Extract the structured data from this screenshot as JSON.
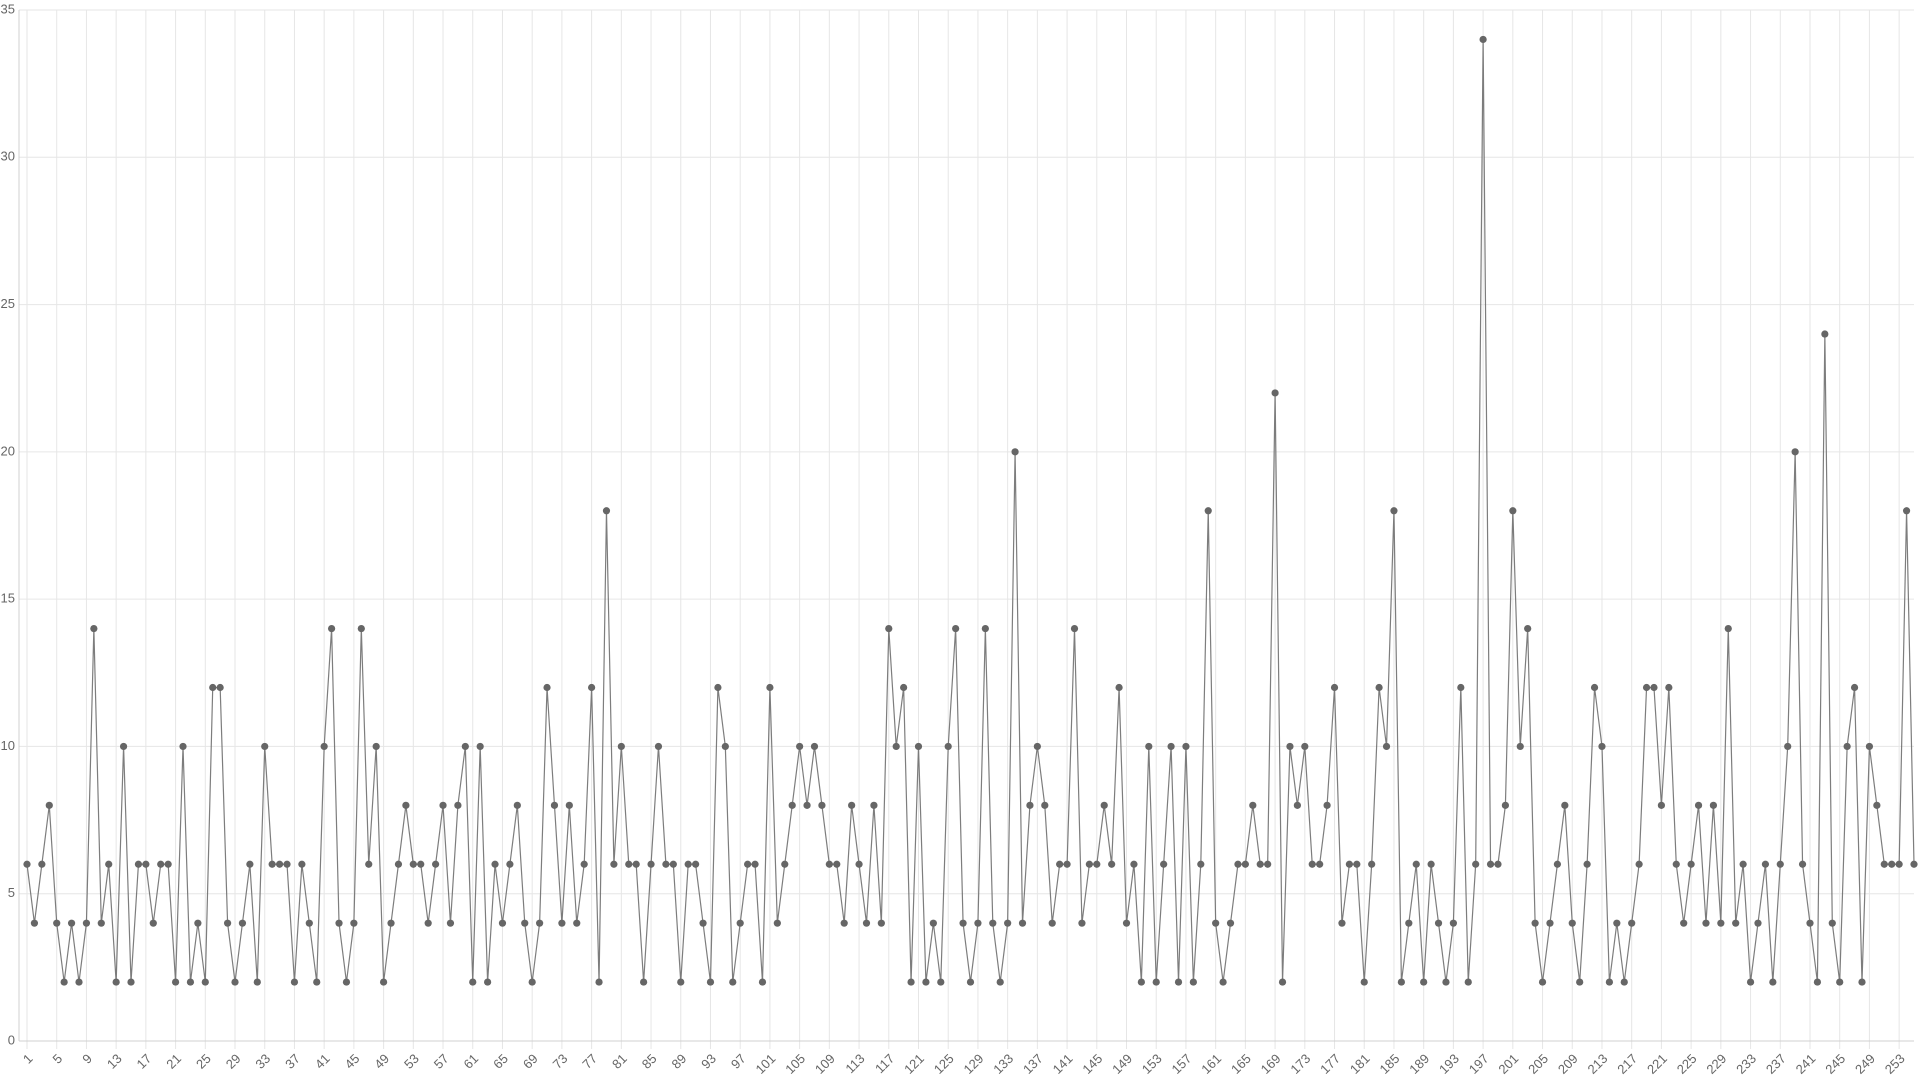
{
  "chart_data": {
    "type": "line",
    "x": [
      1,
      2,
      3,
      4,
      5,
      6,
      7,
      8,
      9,
      10,
      11,
      12,
      13,
      14,
      15,
      16,
      17,
      18,
      19,
      20,
      21,
      22,
      23,
      24,
      25,
      26,
      27,
      28,
      29,
      30,
      31,
      32,
      33,
      34,
      35,
      36,
      37,
      38,
      39,
      40,
      41,
      42,
      43,
      44,
      45,
      46,
      47,
      48,
      49,
      50,
      51,
      52,
      53,
      54,
      55,
      56,
      57,
      58,
      59,
      60,
      61,
      62,
      63,
      64,
      65,
      66,
      67,
      68,
      69,
      70,
      71,
      72,
      73,
      74,
      75,
      76,
      77,
      78,
      79,
      80,
      81,
      82,
      83,
      84,
      85,
      86,
      87,
      88,
      89,
      90,
      91,
      92,
      93,
      94,
      95,
      96,
      97,
      98,
      99,
      100,
      101,
      102,
      103,
      104,
      105,
      106,
      107,
      108,
      109,
      110,
      111,
      112,
      113,
      114,
      115,
      116,
      117,
      118,
      119,
      120,
      121,
      122,
      123,
      124,
      125,
      126,
      127,
      128,
      129,
      130,
      131,
      132,
      133,
      134,
      135,
      136,
      137,
      138,
      139,
      140,
      141,
      142,
      143,
      144,
      145,
      146,
      147,
      148,
      149,
      150,
      151,
      152,
      153,
      154,
      155,
      156,
      157,
      158,
      159,
      160,
      161,
      162,
      163,
      164,
      165,
      166,
      167,
      168,
      169,
      170,
      171,
      172,
      173,
      174,
      175,
      176,
      177,
      178,
      179,
      180,
      181,
      182,
      183,
      184,
      185,
      186,
      187,
      188,
      189,
      190,
      191,
      192,
      193,
      194,
      195,
      196,
      197,
      198,
      199,
      200,
      201,
      202,
      203,
      204,
      205,
      206,
      207,
      208,
      209,
      210,
      211,
      212,
      213,
      214,
      215,
      216,
      217,
      218,
      219,
      220,
      221,
      222,
      223,
      224,
      225,
      226,
      227,
      228,
      229,
      230,
      231,
      232,
      233,
      234,
      235,
      236,
      237,
      238,
      239,
      240,
      241,
      242,
      243,
      244,
      245,
      246,
      247,
      248,
      249,
      250,
      251,
      252,
      253,
      254,
      255
    ],
    "values": [
      6,
      4,
      6,
      8,
      4,
      2,
      4,
      2,
      4,
      14,
      4,
      6,
      2,
      10,
      2,
      6,
      6,
      4,
      6,
      6,
      2,
      10,
      2,
      4,
      2,
      12,
      12,
      4,
      2,
      4,
      6,
      2,
      10,
      6,
      6,
      6,
      2,
      6,
      4,
      2,
      10,
      14,
      4,
      2,
      4,
      14,
      6,
      10,
      2,
      4,
      6,
      8,
      6,
      6,
      4,
      6,
      8,
      4,
      8,
      10,
      2,
      10,
      2,
      6,
      4,
      6,
      8,
      4,
      2,
      4,
      12,
      8,
      4,
      8,
      4,
      6,
      12,
      2,
      18,
      6,
      10,
      6,
      6,
      2,
      6,
      10,
      6,
      6,
      2,
      6,
      6,
      4,
      2,
      12,
      10,
      2,
      4,
      6,
      6,
      2,
      12,
      4,
      6,
      8,
      10,
      8,
      10,
      8,
      6,
      6,
      4,
      8,
      6,
      4,
      8,
      4,
      14,
      10,
      12,
      2,
      10,
      2,
      4,
      2,
      10,
      14,
      4,
      2,
      4,
      14,
      4,
      2,
      4,
      20,
      4,
      8,
      10,
      8,
      4,
      6,
      6,
      14,
      4,
      6,
      6,
      8,
      6,
      12,
      4,
      6,
      2,
      10,
      2,
      6,
      10,
      2,
      10,
      2,
      6,
      18,
      4,
      2,
      4,
      6,
      6,
      8,
      6,
      6,
      22,
      2,
      10,
      8,
      10,
      6,
      6,
      8,
      12,
      4,
      6,
      6,
      2,
      6,
      12,
      10,
      18,
      2,
      4,
      6,
      2,
      6,
      4,
      2,
      4,
      12,
      2,
      6,
      34,
      6,
      6,
      8,
      18,
      10,
      14,
      4,
      2,
      4,
      6,
      8,
      4,
      2,
      6,
      12,
      10,
      2,
      4,
      2,
      4,
      6,
      12,
      12,
      8,
      12,
      6,
      4,
      6,
      8,
      4,
      8,
      4,
      14,
      4,
      6,
      2,
      4,
      6,
      2,
      6,
      10,
      20,
      6,
      4,
      2,
      24,
      4,
      2,
      10,
      12,
      2,
      10,
      8,
      6,
      6,
      6,
      18,
      6
    ],
    "color": "#666666",
    "xlim": [
      1,
      255
    ],
    "xticks": [
      1,
      5,
      9,
      13,
      17,
      21,
      25,
      29,
      33,
      37,
      41,
      45,
      49,
      53,
      57,
      61,
      65,
      69,
      73,
      77,
      81,
      85,
      89,
      93,
      97,
      101,
      105,
      109,
      113,
      117,
      121,
      125,
      129,
      133,
      137,
      141,
      145,
      149,
      153,
      157,
      161,
      165,
      169,
      173,
      177,
      181,
      185,
      189,
      193,
      197,
      201,
      205,
      209,
      213,
      217,
      221,
      225,
      229,
      233,
      237,
      241,
      245,
      249,
      253
    ],
    "ylim": [
      0,
      35
    ],
    "yticks": [
      0,
      5,
      10,
      15,
      20,
      25,
      30,
      35
    ],
    "grid": true
  }
}
